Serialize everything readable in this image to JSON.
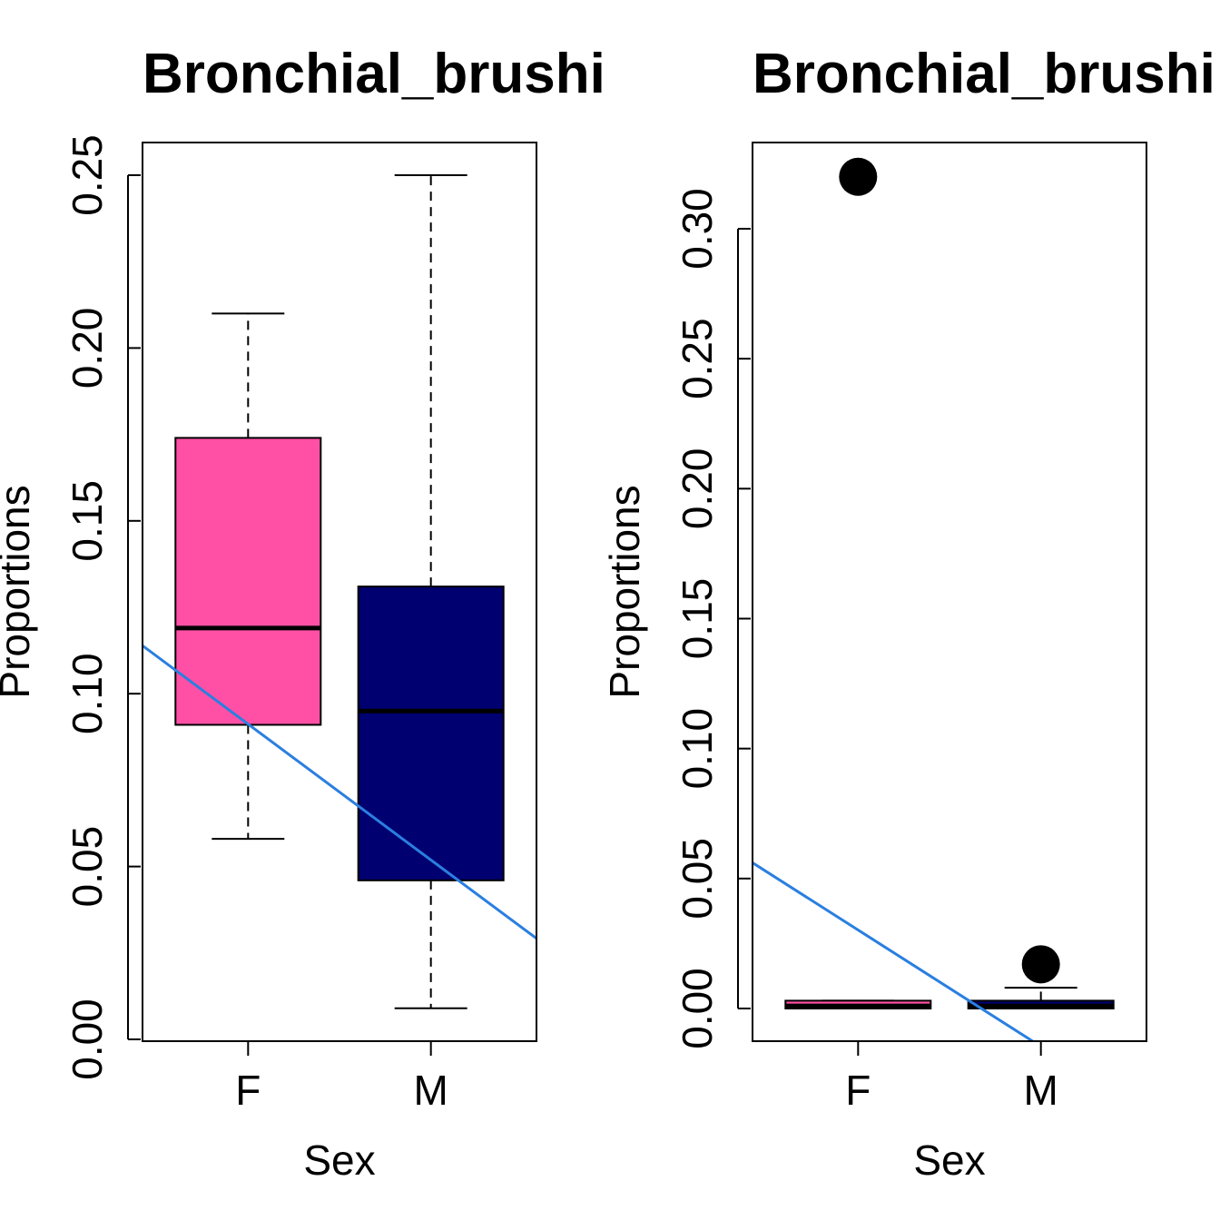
{
  "chart_data": [
    {
      "type": "boxplot",
      "title": "Bronchial_brushi",
      "xlabel": "Sex",
      "ylabel": "Proportions",
      "categories": [
        "F",
        "M"
      ],
      "ylim": [
        0,
        0.26
      ],
      "yticks": [
        "0.00",
        "0.05",
        "0.10",
        "0.15",
        "0.20",
        "0.25"
      ],
      "boxes": [
        {
          "name": "F",
          "color": "#FF50A5",
          "whisker_low": 0.058,
          "q1": 0.091,
          "median": 0.119,
          "q3": 0.174,
          "whisker_high": 0.21,
          "outliers": []
        },
        {
          "name": "M",
          "color": "#000070",
          "whisker_low": 0.009,
          "q1": 0.046,
          "median": 0.095,
          "q3": 0.131,
          "whisker_high": 0.25,
          "outliers": []
        }
      ],
      "trend_line": {
        "color": "#2A7FE0",
        "intercept": 0.1305,
        "slope": -0.0393
      }
    },
    {
      "type": "boxplot",
      "title": "Bronchial_brushi",
      "xlabel": "Sex",
      "ylabel": "Proportions",
      "categories": [
        "F",
        "M"
      ],
      "ylim": [
        0,
        0.33
      ],
      "yticks": [
        "0.00",
        "0.05",
        "0.10",
        "0.15",
        "0.20",
        "0.25",
        "0.30"
      ],
      "boxes": [
        {
          "name": "F",
          "color": "#FF50A5",
          "whisker_low": 0.0,
          "q1": 0.0,
          "median": 0.001,
          "q3": 0.003,
          "whisker_high": 0.003,
          "outliers": [
            0.32
          ]
        },
        {
          "name": "M",
          "color": "#000070",
          "whisker_low": 0.0,
          "q1": 0.0,
          "median": 0.001,
          "q3": 0.003,
          "whisker_high": 0.008,
          "outliers": [
            0.017
          ]
        }
      ],
      "trend_line": {
        "color": "#2A7FE0",
        "intercept": 0.075,
        "slope": -0.0448
      }
    }
  ]
}
